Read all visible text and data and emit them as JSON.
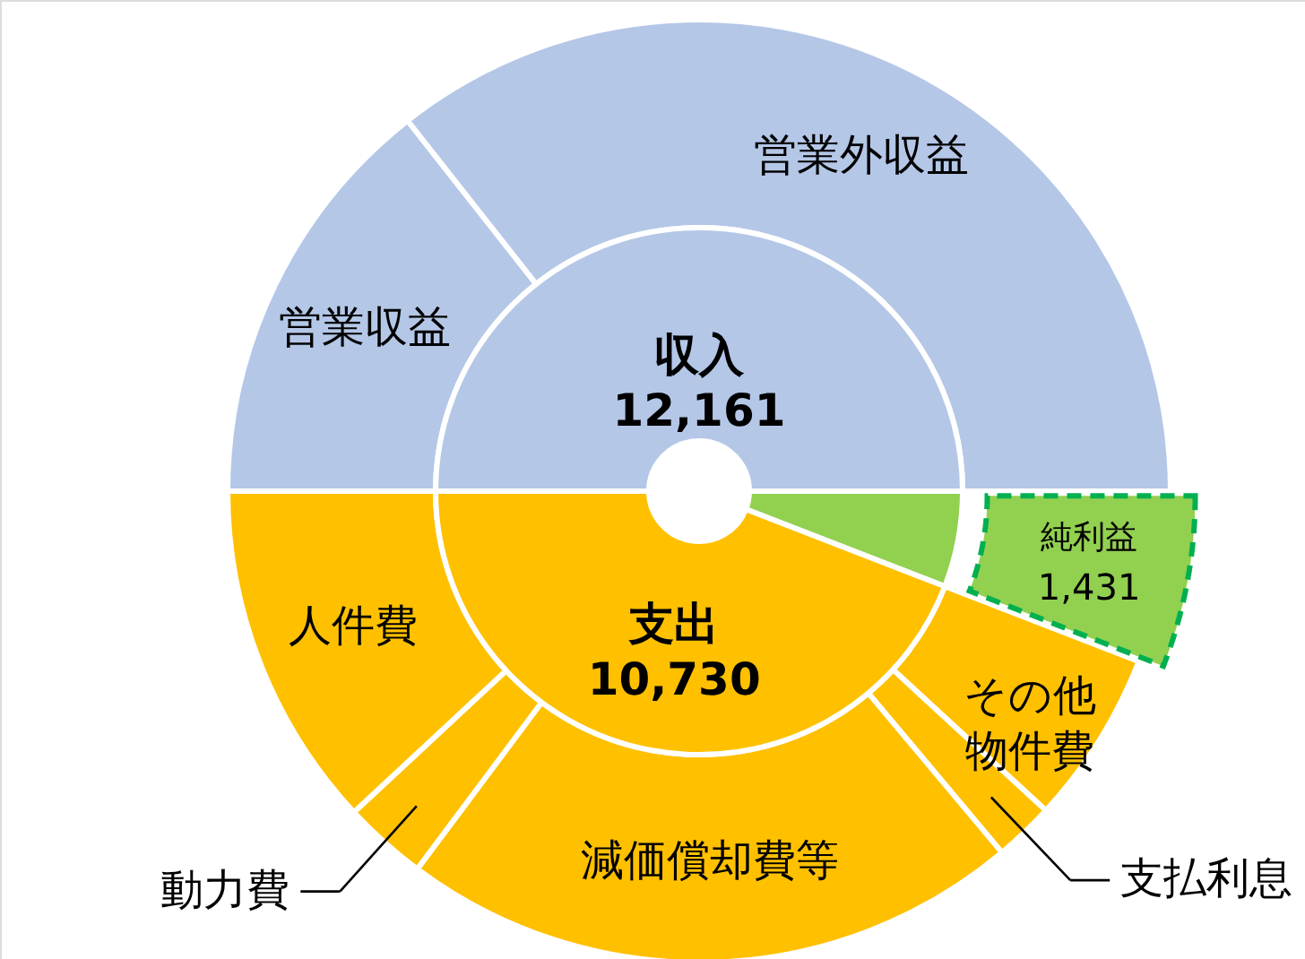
{
  "chart_data": {
    "type": "donut",
    "categories": [
      null,
      null,
      null,
      "営業収益",
      "営業外収益",
      "純利益",
      "その他物件費",
      "支払利息",
      "減価償却費等",
      "動力費",
      "人件費"
    ],
    "colors": [
      "#b4c7e7",
      "#92d050",
      "#ffc000",
      "#b4c7e7",
      "#b4c7e7",
      "#92d050",
      "#ffc000",
      "#ffc000",
      "#ffc000",
      "#ffc000",
      "#ffc000"
    ],
    "series": [
      {
        "values": [
          null,
          null,
          null,
          3500,
          8661,
          1431,
          1450,
          500,
          5180,
          700,
          2900
        ],
        "value_labels": [
          null,
          null,
          null,
          null,
          null,
          "1,431",
          null,
          null,
          null,
          null,
          null
        ]
      },
      {
        "values": [
          12161,
          1431,
          10730,
          null,
          null,
          null,
          null,
          null,
          null,
          null,
          null
        ],
        "value_labels": [
          "収入 12,161",
          null,
          "支出 10,730",
          null,
          null,
          null,
          null,
          null,
          null,
          null,
          null
        ]
      }
    ]
  }
}
